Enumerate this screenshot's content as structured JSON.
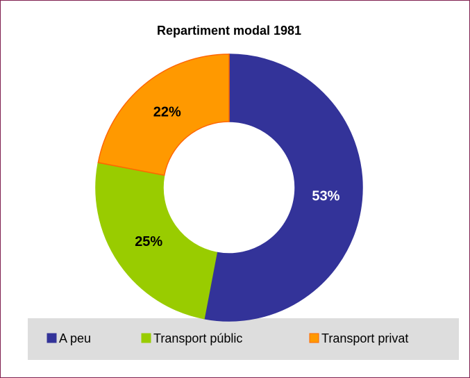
{
  "chart_data": {
    "type": "doughnut",
    "title": "Repartiment modal 1981",
    "categories": [
      "A peu",
      "Transport públic",
      "Transport privat"
    ],
    "values": [
      53,
      25,
      22
    ],
    "value_labels": [
      "53%",
      "25%",
      "22%"
    ],
    "colors": [
      "#333399",
      "#99cc00",
      "#ff9900"
    ],
    "legend": "bottom"
  }
}
